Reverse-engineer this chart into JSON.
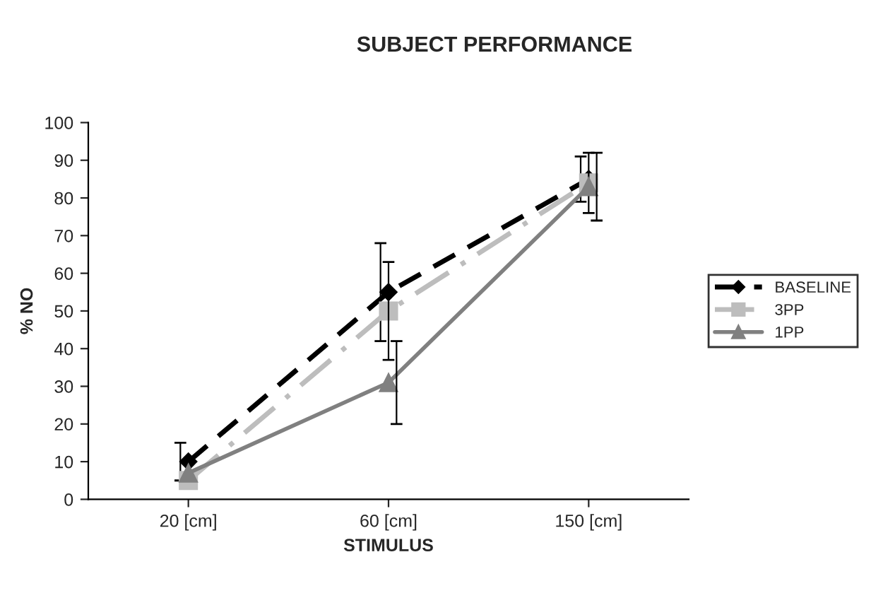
{
  "chart_data": {
    "type": "line",
    "title": "SUBJECT PERFORMANCE",
    "xlabel": "STIMULUS",
    "ylabel": "% NO",
    "categories": [
      "20 [cm]",
      "60 [cm]",
      "150 [cm]"
    ],
    "series": [
      {
        "name": "BASELINE",
        "color": "#000000",
        "values": [
          10,
          55,
          85
        ],
        "errors": [
          5,
          13,
          6
        ],
        "marker": "diamond",
        "line_style": "dashed"
      },
      {
        "name": "3PP",
        "color": "#bdbdbd",
        "values": [
          5,
          50,
          84
        ],
        "errors": [
          null,
          13,
          8
        ],
        "marker": "square",
        "line_style": "dashdot"
      },
      {
        "name": "1PP",
        "color": "#808080",
        "values": [
          7,
          31,
          83
        ],
        "errors": [
          null,
          11,
          9
        ],
        "marker": "triangle",
        "line_style": "solid"
      }
    ],
    "ylim": [
      0,
      100
    ],
    "yticks": [
      0,
      10,
      20,
      30,
      40,
      50,
      60,
      70,
      80,
      90,
      100
    ],
    "grid": false,
    "legend": "right"
  }
}
